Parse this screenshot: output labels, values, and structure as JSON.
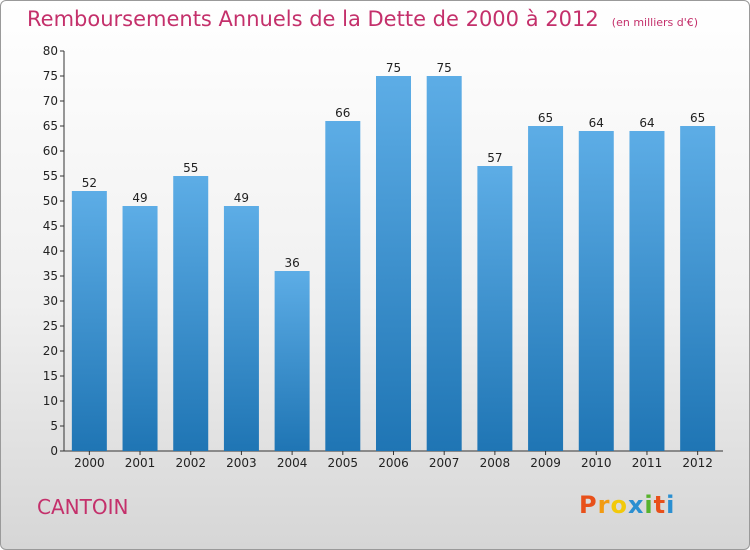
{
  "header": {
    "title": "Remboursements Annuels de la Dette de 2000 à 2012",
    "unit": "(en milliers d'€)"
  },
  "footer": {
    "commune": "CANTOIN",
    "brand_letters": [
      "P",
      "r",
      "o",
      "x",
      "i",
      "t",
      "i"
    ]
  },
  "colors": {
    "title": "#c4306b",
    "bar_top": "#5dade6",
    "bar_bottom": "#1f75b4",
    "brand": [
      "#e8501a",
      "#f29b12",
      "#f2c90a",
      "#2a8fd1",
      "#57b22c",
      "#e8501a",
      "#2a8fd1"
    ]
  },
  "chart_data": {
    "type": "bar",
    "title": "Remboursements Annuels de la Dette de 2000 à 2012",
    "categories": [
      "2000",
      "2001",
      "2002",
      "2003",
      "2004",
      "2005",
      "2006",
      "2007",
      "2008",
      "2009",
      "2010",
      "2011",
      "2012"
    ],
    "values": [
      52,
      49,
      55,
      49,
      36,
      66,
      75,
      75,
      57,
      65,
      64,
      64,
      65
    ],
    "ylim": [
      0,
      80
    ],
    "yticks": [
      0,
      5,
      10,
      15,
      20,
      25,
      30,
      35,
      40,
      45,
      50,
      55,
      60,
      65,
      70,
      75,
      80
    ],
    "grid": false,
    "legend": "none"
  }
}
